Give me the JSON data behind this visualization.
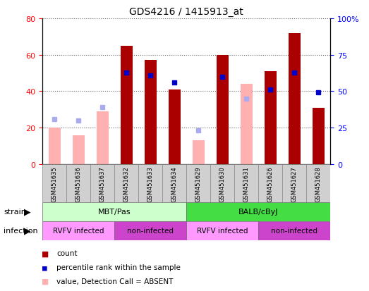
{
  "title": "GDS4216 / 1415913_at",
  "samples": [
    "GSM451635",
    "GSM451636",
    "GSM451637",
    "GSM451632",
    "GSM451633",
    "GSM451634",
    "GSM451629",
    "GSM451630",
    "GSM451631",
    "GSM451626",
    "GSM451627",
    "GSM451628"
  ],
  "count": [
    null,
    null,
    null,
    65,
    57,
    41,
    null,
    60,
    null,
    51,
    72,
    31
  ],
  "percentile_rank": [
    null,
    null,
    null,
    63,
    61,
    56,
    null,
    60,
    null,
    51,
    63,
    49
  ],
  "value_absent": [
    20,
    16,
    29,
    null,
    null,
    null,
    13,
    null,
    44,
    null,
    null,
    null
  ],
  "rank_absent": [
    31,
    30,
    39,
    null,
    null,
    null,
    23,
    null,
    45,
    null,
    null,
    null
  ],
  "strain_groups": [
    {
      "label": "MBT/Pas",
      "start": 0,
      "end": 6,
      "color": "#ccffcc"
    },
    {
      "label": "BALB/cByJ",
      "start": 6,
      "end": 12,
      "color": "#44dd44"
    }
  ],
  "infection_groups": [
    {
      "label": "RVFV infected",
      "start": 0,
      "end": 3,
      "color": "#ff99ff"
    },
    {
      "label": "non-infected",
      "start": 3,
      "end": 6,
      "color": "#cc44cc"
    },
    {
      "label": "RVFV infected",
      "start": 6,
      "end": 9,
      "color": "#ff99ff"
    },
    {
      "label": "non-infected",
      "start": 9,
      "end": 12,
      "color": "#cc44cc"
    }
  ],
  "ylim_left": [
    0,
    80
  ],
  "ylim_right": [
    0,
    100
  ],
  "yticks_left": [
    0,
    20,
    40,
    60,
    80
  ],
  "yticks_right": [
    0,
    25,
    50,
    75,
    100
  ],
  "count_color": "#aa0000",
  "percentile_color": "#0000cc",
  "value_absent_color": "#ffb0b0",
  "rank_absent_color": "#aaaaee",
  "bg_color": "#ffffff",
  "plot_bg": "#ffffff",
  "grid_color": "#888888",
  "bar_width": 0.5
}
